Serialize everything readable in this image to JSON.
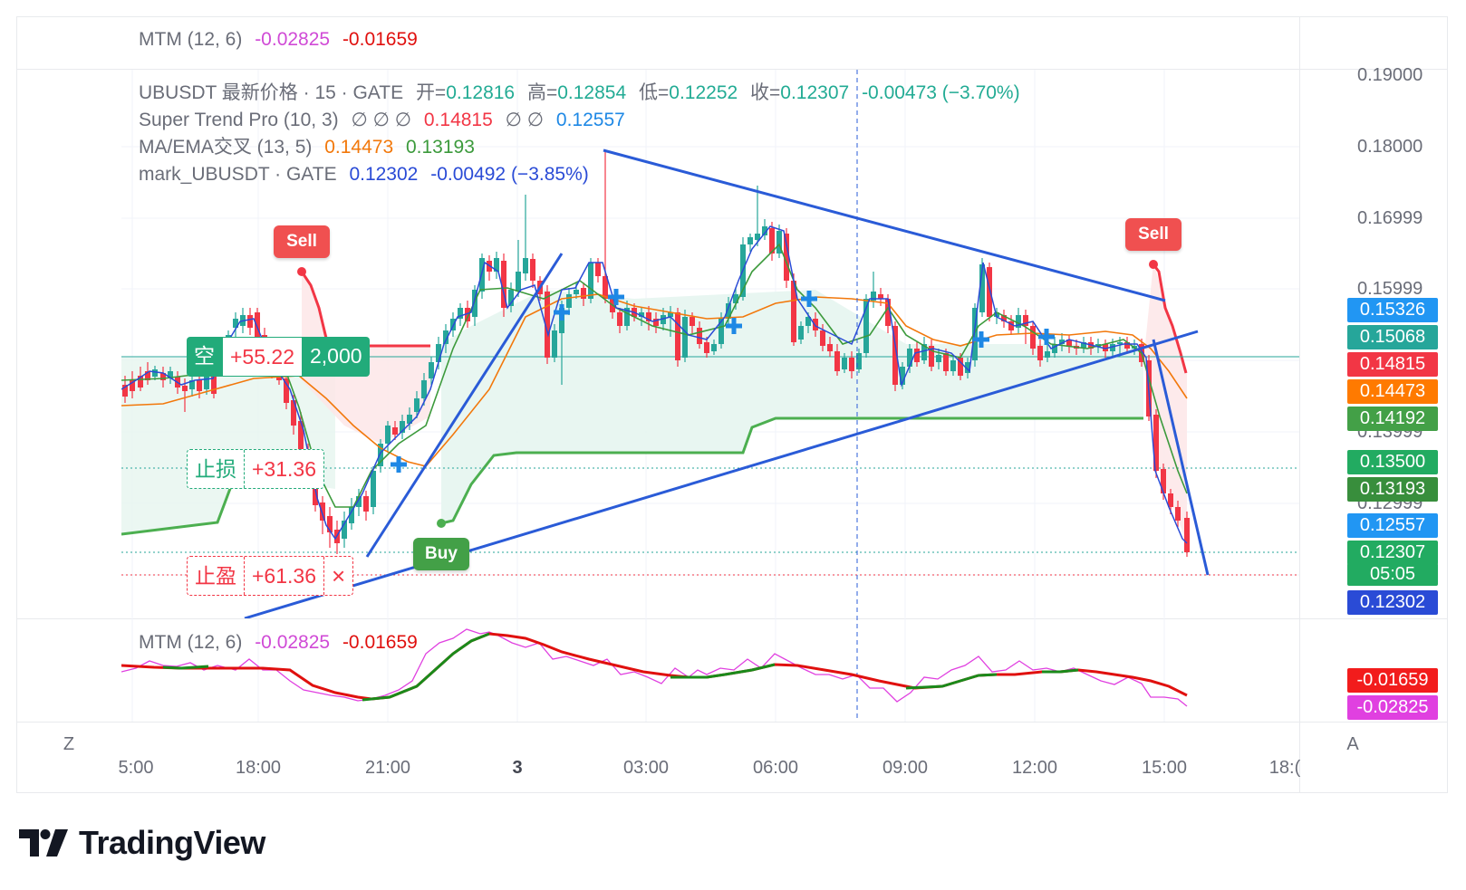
{
  "window": {
    "brand": "TradingView"
  },
  "top_indicator": {
    "name": "MTM (12, 6)",
    "v1": "-0.02825",
    "v2": "-0.01659"
  },
  "main_legend": {
    "symbol": "UBUSDT 最新价格 · 15 · GATE",
    "open_label": "开=",
    "open": "0.12816",
    "high_label": "高=",
    "high": "0.12854",
    "low_label": "低=",
    "low": "0.12252",
    "close_label": "收=",
    "close": "0.12307",
    "change": "-0.00473 (−3.70%)",
    "supertrend_name": "Super Trend Pro (10, 3)",
    "supertrend_empty": "∅  ∅  ∅",
    "supertrend_v1": "0.14815",
    "supertrend_empty2": "∅  ∅",
    "supertrend_v2": "0.12557",
    "ma_name": "MA/EMA交叉 (13, 5)",
    "ma_v1": "0.14473",
    "ma_v2": "0.13193",
    "mark_name": "mark_UBUSDT · GATE",
    "mark_v": "0.12302",
    "mark_change": "-0.00492 (−3.85%)"
  },
  "price_axis": {
    "ticks": [
      "0.19000",
      "0.18000",
      "0.16999",
      "0.15999",
      "0.13999",
      "0.12999"
    ],
    "badges": [
      {
        "label": "0.15326",
        "color": "#2196f3"
      },
      {
        "label": "0.15068",
        "color": "#26a69a"
      },
      {
        "label": "0.14815",
        "color": "#f23645"
      },
      {
        "label": "0.14473",
        "color": "#ff7a00"
      },
      {
        "label": "0.14192",
        "color": "#43a047"
      },
      {
        "label": "0.13500",
        "color": "#22ab61"
      },
      {
        "label": "0.13193",
        "color": "#388e3c"
      },
      {
        "label": "0.12557",
        "color": "#2196f3"
      },
      {
        "label": "0.12307",
        "color": "#22ab61"
      },
      {
        "label": "0.12302",
        "color": "#2a4bd6"
      }
    ],
    "countdown": "05:05"
  },
  "mtm_axis": {
    "badges": [
      {
        "label": "-0.01659",
        "color": "#f21c1c"
      },
      {
        "label": "-0.02825",
        "color": "#e040e0"
      }
    ]
  },
  "time_axis": {
    "ticks": [
      "5:00",
      "18:00",
      "21:00",
      "3",
      "03:00",
      "06:00",
      "09:00",
      "12:00",
      "15:00",
      "18:("
    ],
    "left_button": "Z",
    "right_button": "A"
  },
  "position": {
    "side": "空",
    "pnl": "+55.22",
    "qty": "2,000",
    "stop_label": "止损",
    "stop_value": "+31.36",
    "tp_label": "止盈",
    "tp_value": "+61.36",
    "close_icon": "×"
  },
  "signals": {
    "sell_left": "Sell",
    "sell_right": "Sell",
    "buy": "Buy"
  },
  "colors": {
    "up": "#26a69a",
    "down": "#f23645",
    "trendline": "#2a5bd7",
    "supertrend_up": "#4caf50",
    "supertrend_down": "#f23645"
  }
}
